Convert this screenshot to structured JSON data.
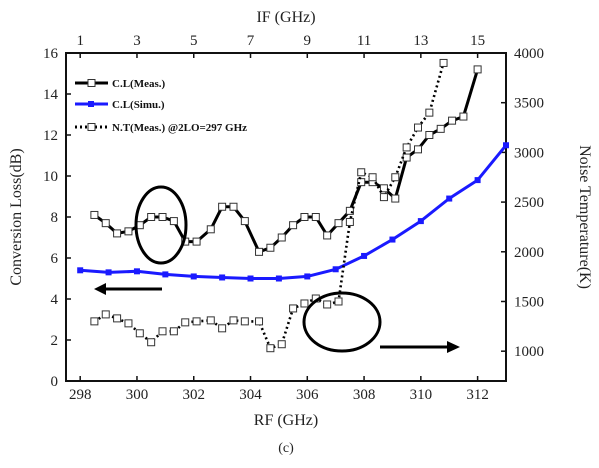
{
  "chart_data": {
    "type": "line",
    "caption": "(c)",
    "x_bottom": {
      "label": "RF (GHz)",
      "range": [
        297.5,
        313
      ],
      "ticks": [
        298,
        300,
        302,
        304,
        306,
        308,
        310,
        312
      ]
    },
    "x_top": {
      "label": "IF (GHz)",
      "ticks": [
        1,
        3,
        5,
        7,
        9,
        11,
        13,
        15
      ],
      "rf_equivalent": [
        298,
        300,
        302,
        304,
        306,
        308,
        310,
        312
      ]
    },
    "y_left": {
      "label": "Conversion Loss(dB)",
      "range": [
        0,
        16
      ],
      "ticks": [
        0,
        2,
        4,
        6,
        8,
        10,
        12,
        14,
        16
      ]
    },
    "y_right": {
      "label": "Noise Temperature(K)",
      "range": [
        700,
        4000
      ],
      "ticks": [
        1000,
        1500,
        2000,
        2500,
        3000,
        3500,
        4000
      ]
    },
    "legend": {
      "placement": "top-left",
      "entries": [
        {
          "label": "C.L(Meas.)"
        },
        {
          "label": "C.L(Simu.)"
        },
        {
          "label": "N.T(Meas.)  @2LO=297 GHz"
        }
      ]
    },
    "series": [
      {
        "name": "C.L(Meas.)",
        "axis": "left",
        "color": "#000000",
        "x": [
          298.5,
          298.9,
          299.3,
          299.7,
          300.1,
          300.5,
          300.9,
          301.3,
          301.7,
          302.1,
          302.6,
          303.0,
          303.4,
          303.8,
          304.3,
          304.7,
          305.1,
          305.5,
          305.9,
          306.3,
          306.7,
          307.1,
          307.5,
          307.9,
          308.3,
          308.7,
          309.1,
          309.5,
          309.9,
          310.3,
          310.7,
          311.1,
          311.5,
          312.0
        ],
        "y": [
          8.1,
          7.7,
          7.2,
          7.3,
          7.6,
          8.0,
          8.0,
          7.8,
          6.8,
          6.8,
          7.4,
          8.5,
          8.5,
          7.8,
          6.3,
          6.5,
          7.0,
          7.6,
          8.0,
          8.0,
          7.1,
          7.7,
          8.3,
          9.7,
          9.7,
          9.4,
          8.9,
          10.9,
          11.3,
          12.0,
          12.3,
          12.7,
          12.9,
          15.2
        ]
      },
      {
        "name": "C.L(Simu.)",
        "axis": "left",
        "color": "#1a1aff",
        "x": [
          298,
          299,
          300,
          301,
          302,
          303,
          304,
          305,
          306,
          307,
          308,
          309,
          310,
          311,
          312,
          313
        ],
        "y": [
          5.4,
          5.3,
          5.35,
          5.2,
          5.1,
          5.05,
          5.0,
          5.0,
          5.1,
          5.45,
          6.1,
          6.9,
          7.8,
          8.9,
          9.8,
          11.5
        ]
      },
      {
        "name": "N.T(Meas.)",
        "axis": "right",
        "color": "#000000",
        "x": [
          298.5,
          298.9,
          299.3,
          299.7,
          300.1,
          300.5,
          300.9,
          301.3,
          301.7,
          302.1,
          302.6,
          303.0,
          303.4,
          303.8,
          304.3,
          304.7,
          305.1,
          305.5,
          305.9,
          306.3,
          306.7,
          307.1,
          307.5,
          307.9,
          308.3,
          308.7,
          309.1,
          309.5,
          309.9,
          310.3,
          310.8
        ],
        "y": [
          1300,
          1370,
          1330,
          1280,
          1180,
          1090,
          1200,
          1200,
          1290,
          1300,
          1310,
          1230,
          1310,
          1300,
          1300,
          1030,
          1070,
          1430,
          1480,
          1530,
          1470,
          1500,
          2300,
          2800,
          2750,
          2550,
          2750,
          3050,
          3250,
          3400,
          3900
        ]
      }
    ],
    "annotations": [
      {
        "type": "ellipse",
        "around_series": "C.L(Meas.)",
        "arrow": "left",
        "points_to": "Conversion Loss(dB)"
      },
      {
        "type": "ellipse",
        "around_series": "N.T(Meas.)",
        "arrow": "right",
        "points_to": "Noise Temperature(K)"
      }
    ]
  }
}
